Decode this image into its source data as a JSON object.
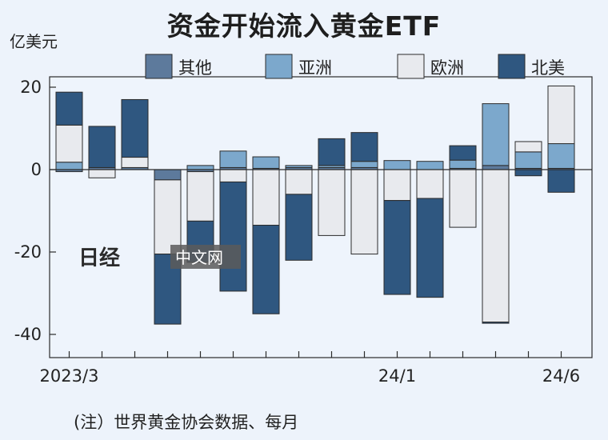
{
  "title": "资金开始流入黄金ETF",
  "unit": "亿美元",
  "source_note": "(注）世界黄金协会数据、每月",
  "watermark": {
    "logo": "日经",
    "site": "中文网"
  },
  "chart_data": {
    "type": "bar",
    "stacked": true,
    "ylim": [
      -45,
      22
    ],
    "yticks": [
      20,
      0,
      -20,
      -40
    ],
    "ytick_labels": [
      "20",
      "0",
      "-20",
      "-40"
    ],
    "xtick_labels": [
      {
        "index": 0,
        "label": "2023/3"
      },
      {
        "index": 10,
        "label": "24/1"
      },
      {
        "index": 15,
        "label": "24/6"
      }
    ],
    "categories": [
      "2023/3",
      "2023/4",
      "2023/5",
      "2023/6",
      "2023/7",
      "2023/8",
      "2023/9",
      "2023/10",
      "2023/11",
      "2023/12",
      "2024/1",
      "2024/2",
      "2024/3",
      "2024/4",
      "2024/5",
      "2024/6"
    ],
    "legend_position": "top",
    "grid": false,
    "series": [
      {
        "name": "其他",
        "color": "#5d7a9c",
        "values": [
          -0.5,
          0.5,
          0.5,
          -2.5,
          -0.5,
          0.5,
          0.3,
          0.5,
          0.5,
          0.5,
          0,
          0,
          0.3,
          1.0,
          0.3,
          0.3
        ]
      },
      {
        "name": "亚洲",
        "color": "#7ca8cc",
        "values": [
          1.8,
          0,
          0,
          0,
          1.0,
          4.0,
          2.8,
          0.5,
          0.5,
          1.5,
          2.2,
          2.0,
          2.0,
          15.0,
          4.0,
          6.0
        ]
      },
      {
        "name": "欧洲",
        "color": "#e8eaee",
        "values": [
          9.0,
          -2.0,
          2.5,
          -18.0,
          -12.0,
          -3.0,
          -13.5,
          -6.0,
          -16.0,
          -20.5,
          -7.5,
          -7.0,
          -14.0,
          -37.0,
          2.5,
          14.0
        ]
      },
      {
        "name": "北美",
        "color": "#2f5780",
        "values": [
          8.0,
          10.0,
          14.0,
          -17.0,
          -10.0,
          -26.5,
          -21.5,
          -16.0,
          6.5,
          7.0,
          -22.8,
          -24.0,
          3.5,
          -0.3,
          -1.5,
          -5.5
        ]
      }
    ]
  }
}
